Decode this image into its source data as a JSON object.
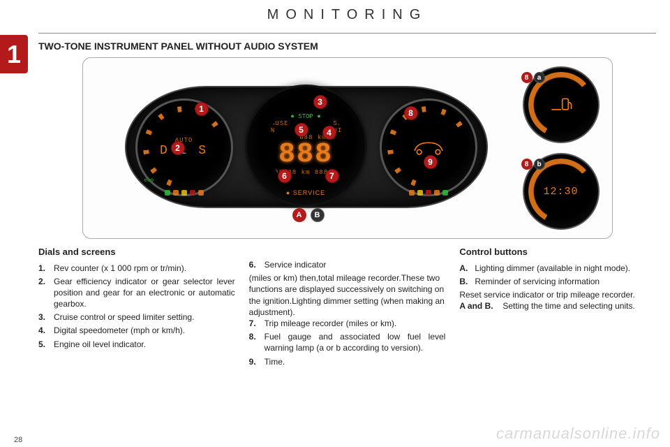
{
  "chapter_number": "1",
  "page_title": "MONITORING",
  "section_title": "TWO-TONE INSTRUMENT PANEL WITHOUT AUDIO SYSTEM",
  "page_number": "28",
  "watermark": "carmanualsonline.info",
  "colors": {
    "brand_red": "#b31b1b",
    "gauge_orange": "#e87a1a",
    "led_green": "#2dbd3a",
    "panel_bg": "#1a1a1a",
    "text": "#222222"
  },
  "cluster": {
    "center": {
      "top_led": "● STOP ●",
      "mode_row": "PAUSE          S/LIMIT\nON           CRUISE",
      "kmh_small": "888 km/h",
      "big_digits": "888",
      "bottom_row": "888888 km   888 km",
      "service_label": "● SERVICE"
    },
    "left": {
      "gear_text": "D 1 S",
      "auto_label": "AUTO",
      "scale_labels": [
        "1",
        "2",
        "3",
        "4",
        "5",
        "6",
        "7"
      ],
      "eco_label": "eco"
    },
    "right": {
      "warn_colors": [
        "#e87a1a",
        "#e8c01a",
        "#b31b1b",
        "#e87a1a",
        "#2dbd3a"
      ]
    },
    "left_warn_colors": [
      "#2dbd3a",
      "#e87a1a",
      "#e8c01a",
      "#b31b1b",
      "#e87a1a"
    ],
    "markers": {
      "1": "1",
      "2": "2",
      "3": "3",
      "4": "4",
      "5": "5",
      "6": "6",
      "7": "7",
      "8": "8",
      "9": "9",
      "A": "A",
      "B": "B"
    },
    "aux_top": {
      "badge_num": "8",
      "badge_letter": "a"
    },
    "aux_bot": {
      "badge_num": "8",
      "badge_letter": "b",
      "time_text": "12:30"
    }
  },
  "columns": {
    "dials_heading": "Dials and screens",
    "controls_heading": "Control buttons",
    "left_items": [
      {
        "n": "1.",
        "t": "Rev counter (x 1 000 rpm or tr/min)."
      },
      {
        "n": "2.",
        "t": "Gear efficiency indicator or gear selector lever position and gear for an electronic or automatic gearbox."
      },
      {
        "n": "3.",
        "t": "Cruise control or speed limiter setting."
      },
      {
        "n": "4.",
        "t": "Digital speedometer (mph or km/h)."
      },
      {
        "n": "5.",
        "t": "Engine oil level indicator."
      }
    ],
    "mid_items": [
      {
        "n": "6.",
        "t": "Service indicator",
        "subs": [
          "(miles or km) then,",
          "total mileage recorder.",
          "These two functions are displayed successively on switching on the ignition.",
          "Lighting dimmer setting (when making an adjustment)."
        ]
      },
      {
        "n": "7.",
        "t": "Trip mileage recorder (miles or km)."
      },
      {
        "n": "8.",
        "t": "Fuel gauge and associated low fuel level warning lamp (a or b according to version)."
      },
      {
        "n": "9.",
        "t": "Time."
      }
    ],
    "right_items": [
      {
        "n": "A.",
        "t": "Lighting dimmer (available in night mode)."
      },
      {
        "n": "B.",
        "t": "Reminder of servicing information",
        "subs": [
          "Reset service indicator or trip mileage recorder."
        ]
      },
      {
        "n": "A and B.",
        "t": "Setting the time and selecting units.",
        "nw": "62px"
      }
    ]
  }
}
